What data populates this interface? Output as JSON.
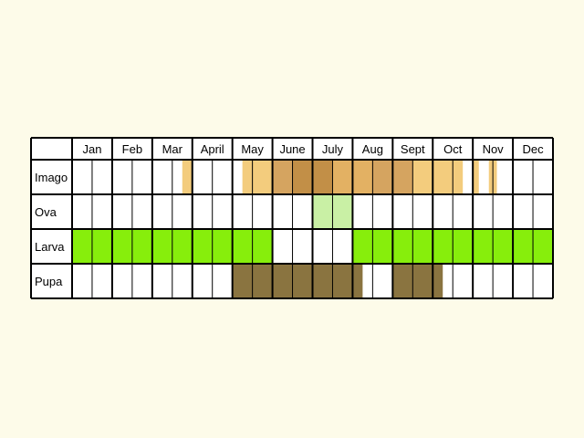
{
  "months": [
    "Jan",
    "Feb",
    "Mar",
    "April",
    "May",
    "June",
    "July",
    "Aug",
    "Sept",
    "Oct",
    "Nov",
    "Dec"
  ],
  "colors": {
    "background": "#fdfbe9",
    "grid": "#000000",
    "cell_empty": "#ffffff",
    "imago_light": "#f3cc7d",
    "imago_mid": "#e3b163",
    "imago_tan": "#d5a460",
    "imago_dark": "#c28f47",
    "ova": "#c9f0a5",
    "larva": "#87ee0c",
    "pupa": "#8a7440"
  },
  "rows": [
    {
      "label": "Imago",
      "marks": [
        {
          "start": 2.75,
          "end": 3.0,
          "color": "imago_light"
        },
        {
          "start": 4.25,
          "end": 5.0,
          "color": "imago_light"
        },
        {
          "start": 5.0,
          "end": 5.5,
          "color": "imago_tan"
        },
        {
          "start": 5.5,
          "end": 6.5,
          "color": "imago_dark"
        },
        {
          "start": 6.5,
          "end": 7.5,
          "color": "imago_mid"
        },
        {
          "start": 7.5,
          "end": 8.5,
          "color": "imago_tan"
        },
        {
          "start": 8.5,
          "end": 9.75,
          "color": "imago_light"
        },
        {
          "start": 10.0,
          "end": 10.15,
          "color": "imago_light"
        },
        {
          "start": 10.4,
          "end": 10.6,
          "color": "imago_light"
        }
      ]
    },
    {
      "label": "Ova",
      "marks": [
        {
          "start": 6.0,
          "end": 7.0,
          "color": "ova"
        }
      ]
    },
    {
      "label": "Larva",
      "marks": [
        {
          "start": 0.0,
          "end": 5.0,
          "color": "larva"
        },
        {
          "start": 7.0,
          "end": 12.0,
          "color": "larva"
        }
      ]
    },
    {
      "label": "Pupa",
      "marks": [
        {
          "start": 4.0,
          "end": 7.25,
          "color": "pupa"
        },
        {
          "start": 8.0,
          "end": 9.25,
          "color": "pupa"
        }
      ]
    }
  ]
}
